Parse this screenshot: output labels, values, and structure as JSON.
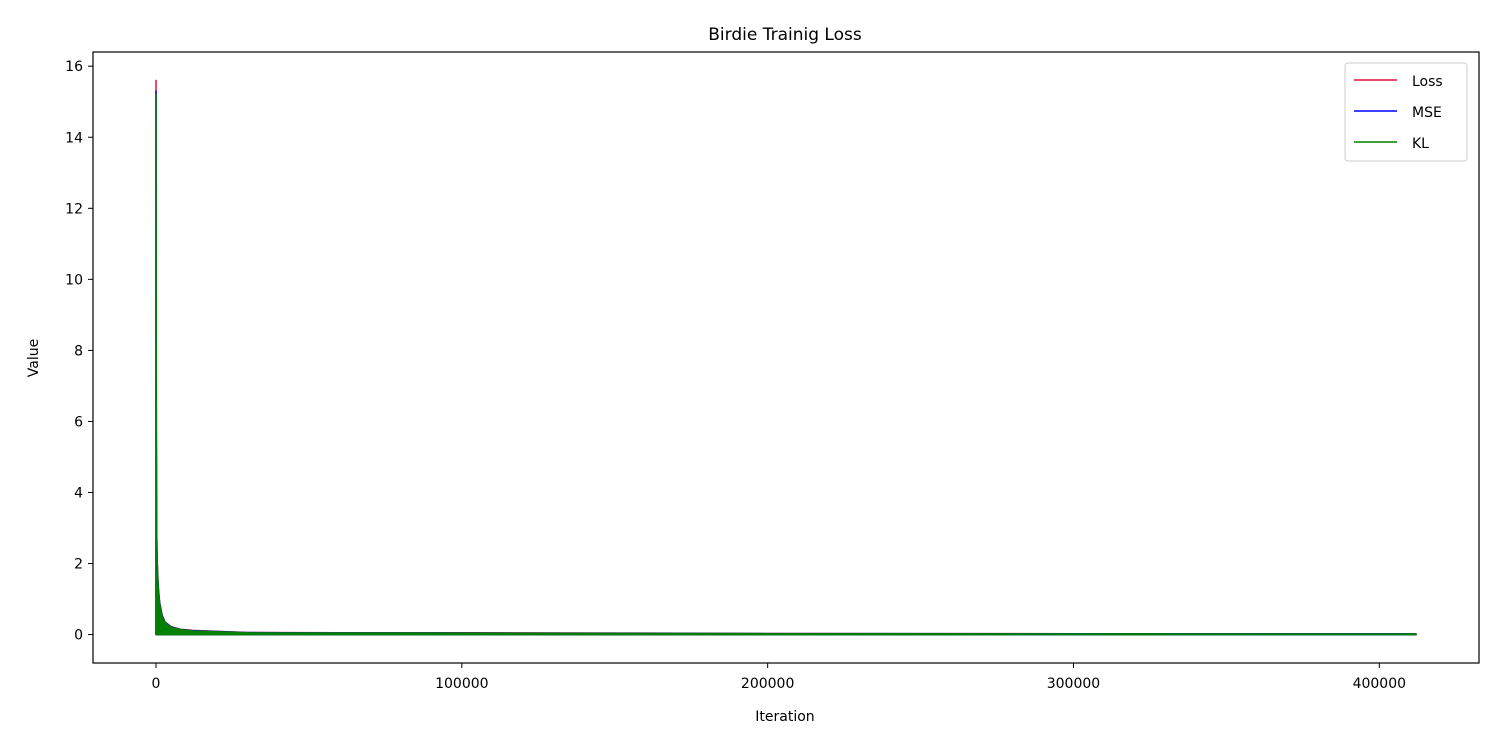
{
  "chart_data": {
    "type": "line",
    "title": "Birdie Trainig Loss",
    "xlabel": "Iteration",
    "ylabel": "Value",
    "xlim": [
      -20600,
      432600
    ],
    "ylim": [
      -0.8,
      16.4
    ],
    "xticks": [
      0,
      100000,
      200000,
      300000,
      400000
    ],
    "yticks": [
      0,
      2,
      4,
      6,
      8,
      10,
      12,
      14,
      16
    ],
    "grid": false,
    "legend": "top-right",
    "series": [
      {
        "name": "Loss",
        "color": "#dc143c",
        "x": [
          0,
          50,
          100,
          200,
          300,
          500,
          800,
          1200,
          2000,
          3000,
          5000,
          8000,
          12000,
          20000,
          30000,
          60000,
          100000,
          160000,
          200000,
          300000,
          412000
        ],
        "envelope_max": [
          15.6,
          10.7,
          5.9,
          3.2,
          2.4,
          1.8,
          1.3,
          0.9,
          0.55,
          0.35,
          0.22,
          0.15,
          0.12,
          0.09,
          0.06,
          0.05,
          0.05,
          0.04,
          0.03,
          0.025,
          0.02
        ],
        "envelope_min": [
          0.0,
          0.0,
          0.0,
          0.0,
          0.0,
          0.0,
          0.0,
          0.0,
          0.0,
          0.0,
          0.0,
          0.0,
          0.0,
          0.0,
          0.0,
          0.0,
          0.0,
          0.0,
          0.0,
          0.0,
          0.0
        ]
      },
      {
        "name": "MSE",
        "color": "#0000ff",
        "x": [
          0,
          50,
          100,
          200,
          300,
          500,
          800,
          1200,
          2000,
          3000,
          5000,
          8000,
          12000,
          20000,
          30000,
          60000,
          100000,
          160000,
          200000,
          300000,
          412000
        ],
        "envelope_max": [
          15.3,
          10.6,
          5.85,
          3.15,
          2.35,
          1.75,
          1.25,
          0.88,
          0.53,
          0.34,
          0.21,
          0.14,
          0.11,
          0.085,
          0.055,
          0.045,
          0.045,
          0.035,
          0.028,
          0.022,
          0.018
        ],
        "envelope_min": [
          0.0,
          0.0,
          0.0,
          0.0,
          0.0,
          0.0,
          0.0,
          0.0,
          0.0,
          0.0,
          0.0,
          0.0,
          0.0,
          0.0,
          0.0,
          0.0,
          0.0,
          0.0,
          0.0,
          0.0,
          0.0
        ]
      },
      {
        "name": "KL",
        "color": "#008000",
        "x": [
          0,
          50,
          100,
          200,
          300,
          500,
          800,
          1200,
          2000,
          3000,
          5000,
          8000,
          12000,
          20000,
          30000,
          60000,
          100000,
          160000,
          200000,
          300000,
          412000
        ],
        "envelope_max": [
          15.2,
          10.5,
          5.8,
          3.1,
          2.3,
          1.7,
          1.2,
          0.85,
          0.5,
          0.33,
          0.2,
          0.14,
          0.1,
          0.08,
          0.05,
          0.045,
          0.04,
          0.03,
          0.025,
          0.02,
          0.015
        ],
        "envelope_min": [
          0.0,
          0.0,
          0.0,
          0.0,
          0.0,
          0.0,
          0.0,
          0.0,
          0.0,
          0.0,
          0.0,
          0.0,
          0.0,
          0.0,
          0.0,
          0.0,
          0.0,
          0.0,
          0.0,
          0.0,
          0.0
        ]
      }
    ]
  }
}
